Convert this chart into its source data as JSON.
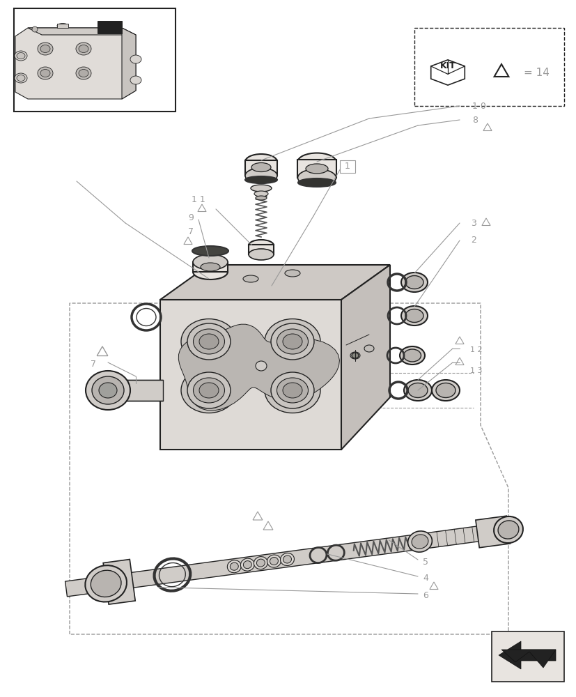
{
  "bg": "#ffffff",
  "lc": "#222222",
  "gc": "#999999",
  "lgc": "#bbbbbb",
  "pc": "#e8e4e0",
  "pdc": "#d0ccc8",
  "pddc": "#b8b4b0",
  "black": "#111111",
  "spring_color": "#555555",
  "oring_color": "#333333"
}
